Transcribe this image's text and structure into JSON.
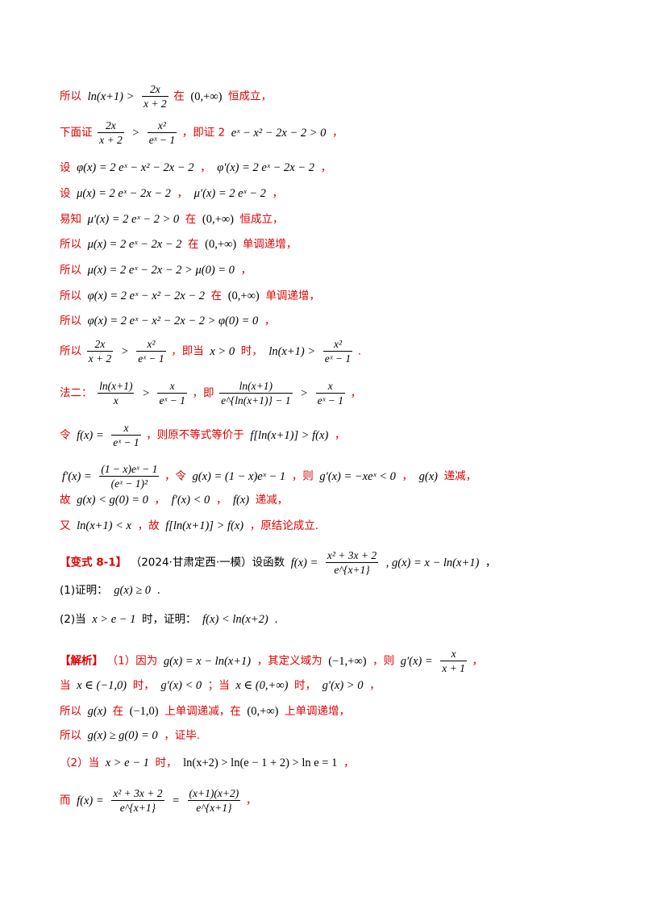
{
  "lines": {
    "l1": {
      "t1": "所以",
      "m1": "ln(x+1) >",
      "fn": "2x",
      "fd": "x + 2",
      "t2": "在",
      "m2": "(0,+∞)",
      "t3": "恒成立，"
    },
    "l2": {
      "t1": "下面证",
      "fn1": "2x",
      "fd1": "x + 2",
      "m1": ">",
      "fn2": "x²",
      "fd2": "eˣ − 1",
      "t2": "，即证 2",
      "m2": "eˣ − x² − 2x − 2 > 0",
      "t3": "，"
    },
    "l3": {
      "t1": "设",
      "m1": "φ(x) = 2 eˣ − x² − 2x − 2",
      "t2": "，",
      "m2": "φ′(x) = 2 eˣ − 2x − 2",
      "t3": "，"
    },
    "l4": {
      "t1": "设",
      "m1": "μ(x) = 2 eˣ − 2x − 2",
      "t2": "，",
      "m2": "μ′(x) = 2 eˣ − 2",
      "t3": "，"
    },
    "l5": {
      "t1": "易知",
      "m1": "μ′(x) = 2 eˣ − 2 > 0",
      "t2": "在",
      "m2": "(0,+∞)",
      "t3": "恒成立，"
    },
    "l6": {
      "t1": "所以",
      "m1": "μ(x) = 2 eˣ − 2x − 2",
      "t2": "在",
      "m2": "(0,+∞)",
      "t3": "单调递增，"
    },
    "l7": {
      "t1": "所以",
      "m1": "μ(x) = 2 eˣ − 2x − 2 > μ(0) = 0",
      "t2": "，"
    },
    "l8": {
      "t1": "所以",
      "m1": "φ(x) = 2 eˣ − x² − 2x − 2",
      "t2": "在",
      "m2": "(0,+∞)",
      "t3": "单调递增，"
    },
    "l9": {
      "t1": "所以",
      "m1": "φ(x) = 2 eˣ − x² − 2x − 2 > φ(0) = 0",
      "t2": "，"
    },
    "l10": {
      "t1": "所以",
      "fn1": "2x",
      "fd1": "x + 2",
      "m1": ">",
      "fn2": "x²",
      "fd2": "eˣ − 1",
      "t2": "，即当",
      "m2": "x > 0",
      "t3": "时，",
      "m3": "ln(x+1) >",
      "fn3": "x²",
      "fd3": "eˣ − 1",
      "t4": "."
    },
    "l11": {
      "t1": "法二：",
      "fn1": "ln(x+1)",
      "fd1": "x",
      "m1": ">",
      "fn2": "x",
      "fd2": "eˣ − 1",
      "t2": "，即",
      "fn3": "ln(x+1)",
      "fd3": "e^{ln(x+1)} − 1",
      "m2": ">",
      "fn4": "x",
      "fd4": "eˣ − 1",
      "t3": "，"
    },
    "l12": {
      "t1": "令",
      "m1": "f(x) =",
      "fn": "x",
      "fd": "eˣ − 1",
      "t2": "，则原不等式等价于",
      "m2": "f[ln(x+1)] > f(x)",
      "t3": "，"
    },
    "l13": {
      "m1": "f′(x) =",
      "fn": "(1 − x)eˣ − 1",
      "fd": "(eˣ − 1)²",
      "t1": "，令",
      "m2": "g(x) = (1 − x)eˣ − 1",
      "t2": "，则",
      "m3": "g′(x) = −xeˣ < 0",
      "t3": "，",
      "m4": "g(x)",
      "t4": "递减，"
    },
    "l14": {
      "t1": "故",
      "m1": "g(x) < g(0) = 0",
      "t2": "，",
      "m2": "f′(x) < 0",
      "t3": "，",
      "m3": "f(x)",
      "t4": "递减，"
    },
    "l15": {
      "t1": "又",
      "m1": "ln(x+1) < x",
      "t2": "，故",
      "m2": "f[ln(x+1)] > f(x)",
      "t3": "，原结论成立."
    },
    "l16": {
      "t1": "【变式 8-1】",
      "t2": "（2024·甘肃定西·一模）设函数",
      "m1": "f(x) =",
      "fn": "x² + 3x + 2",
      "fd": "e^{x+1}",
      "m2": ", g(x) = x − ln(x+1)",
      "t3": "，"
    },
    "l17": {
      "t1": "(1)证明：",
      "m1": "g(x) ≥ 0",
      "t2": "."
    },
    "l18": {
      "t1": "(2)当",
      "m1": "x > e − 1",
      "t2": "时，证明：",
      "m2": "f(x) < ln(x+2)",
      "t3": "."
    },
    "l19": {
      "t1": "【解析】",
      "t2": "（1）因为",
      "m1": "g(x) = x − ln(x+1)",
      "t3": "，其定义域为",
      "m2": "(−1,+∞)",
      "t4": "，则",
      "m3": "g′(x) =",
      "fn": "x",
      "fd": "x + 1",
      "t5": "，"
    },
    "l20": {
      "t1": "当",
      "m1": "x ∈ (−1,0)",
      "t2": "时，",
      "m2": "g′(x) < 0",
      "t3": "；当",
      "m3": "x ∈ (0,+∞)",
      "t4": "时，",
      "m4": "g′(x) > 0",
      "t5": "，"
    },
    "l21": {
      "t1": "所以",
      "m1": "g(x)",
      "t2": "在",
      "m2": "(−1,0)",
      "t3": "上单调递减，在",
      "m3": "(0,+∞)",
      "t4": "上单调递增，"
    },
    "l22": {
      "t1": "所以",
      "m1": "g(x) ≥ g(0) = 0",
      "t2": "，证毕."
    },
    "l23": {
      "t1": "（2）当",
      "m1": "x > e − 1",
      "t2": "时，",
      "m2": "ln(x+2) > ln(e − 1 + 2) > ln e = 1",
      "t3": "，"
    },
    "l24": {
      "t1": "而",
      "m1": "f(x) =",
      "fn1": "x² + 3x + 2",
      "fd1": "e^{x+1}",
      "m2": "=",
      "fn2": "(x+1)(x+2)",
      "fd2": "e^{x+1}",
      "t2": "，"
    }
  }
}
